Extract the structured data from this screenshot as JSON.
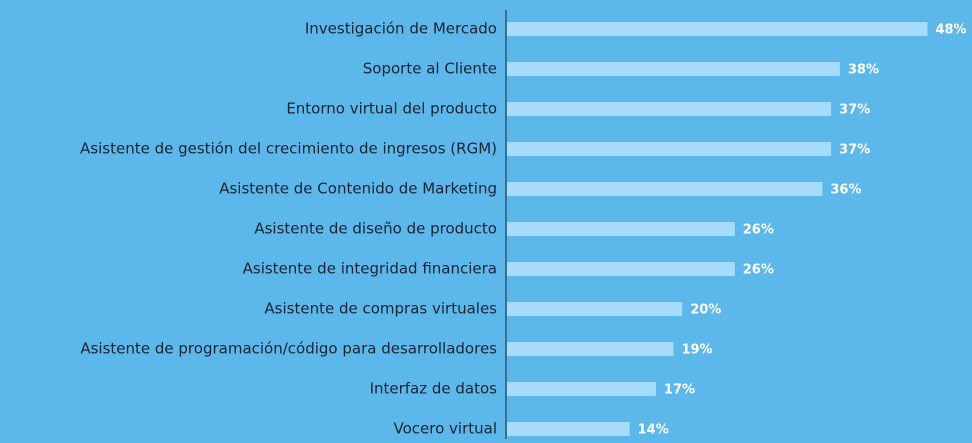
{
  "chart_data": {
    "type": "barh",
    "categories": [
      "Investigación de Mercado",
      "Soporte al Cliente",
      "Entorno virtual del producto",
      "Asistente de gestión del crecimiento de ingresos (RGM)",
      "Asistente de Contenido de Marketing",
      "Asistente de diseño de producto",
      "Asistente de integridad financiera",
      "Asistente de compras virtuales",
      "Asistente de programación/código para desarrolladores",
      "Interfaz de datos",
      "Vocero virtual"
    ],
    "values": [
      48,
      38,
      37,
      37,
      36,
      26,
      26,
      20,
      19,
      17,
      14
    ],
    "value_labels": [
      "48%",
      "38%",
      "37%",
      "37%",
      "36%",
      "26%",
      "26%",
      "20%",
      "19%",
      "17%",
      "14%"
    ],
    "color": "#a6dcf9",
    "xlim": [
      0,
      50
    ]
  }
}
